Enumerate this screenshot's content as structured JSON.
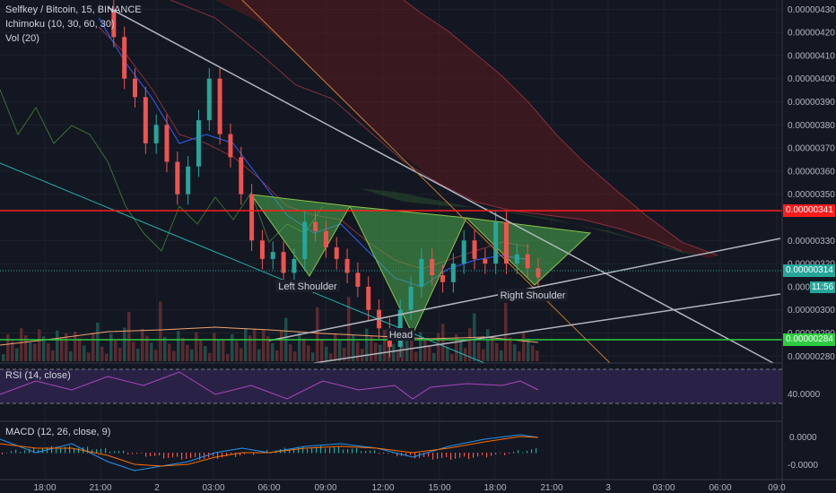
{
  "legend": {
    "symbol": "Selfkey / Bitcoin, 15, BINANCE",
    "ichimoku": "Ichimoku (10, 30, 60, 30)",
    "vol": "Vol (20)"
  },
  "chart_data": [
    {
      "type": "line",
      "name": "main-price-pane",
      "y_ticks": [
        "0.00000430",
        "0.00000420",
        "0.00000410",
        "0.00000400",
        "0.00000390",
        "0.00000380",
        "0.00000370",
        "0.00000360",
        "0.00000350",
        "0.00000330",
        "0.00000320",
        "0.00000300",
        "0.00000290",
        "0.00000280"
      ],
      "ylim": [
        2.77e-06,
        4.34e-06
      ],
      "x_ticks": [
        "18:00",
        "21:00",
        "2",
        "03:00",
        "06:00",
        "09:00",
        "12:00",
        "15:00",
        "18:00",
        "21:00",
        "3",
        "03:00",
        "06:00",
        "09:0"
      ],
      "horizontal_levels": [
        {
          "value": 3.41e-06,
          "label": "0.00000341",
          "color": "#ff1c1c"
        },
        {
          "value": 2.84e-06,
          "label": "0.00000284",
          "color": "#2ecc40"
        }
      ],
      "last_price": {
        "value": 3.14e-06,
        "label": "0.00000314",
        "countdown": "11:56",
        "color": "#26a69a"
      },
      "hidden_tick": "0.00000310",
      "annotations": [
        "Left Shoulder",
        "Head",
        "Right Shoulder"
      ],
      "pattern": "inverse head and shoulders",
      "candles_close": [
        4.3e-06,
        4.18e-06,
        4e-06,
        3.92e-06,
        3.72e-06,
        3.8e-06,
        3.64e-06,
        3.5e-06,
        3.62e-06,
        3.82e-06,
        4e-06,
        3.76e-06,
        3.66e-06,
        3.5e-06,
        3.3e-06,
        3.22e-06,
        3.25e-06,
        3.16e-06,
        3.22e-06,
        3.38e-06,
        3.34e-06,
        3.27e-06,
        3.22e-06,
        3.16e-06,
        3.1e-06,
        3e-06,
        2.92e-06,
        2.84e-06,
        3e-06,
        3.1e-06,
        3.22e-06,
        3.15e-06,
        3.12e-06,
        3.2e-06,
        3.3e-06,
        3.22e-06,
        3.2e-06,
        3.38e-06,
        3.2e-06,
        3.24e-06,
        3.18e-06,
        3.14e-06
      ]
    },
    {
      "type": "line",
      "name": "rsi-pane",
      "label": "RSI (14, close)",
      "y_ticks": [
        "40.0000"
      ],
      "band": [
        30,
        70
      ]
    },
    {
      "type": "bar",
      "name": "macd-pane",
      "label": "MACD (12, 26, close, 9)",
      "y_ticks": [
        "0.0000",
        "-0.0000"
      ]
    }
  ],
  "colors": {
    "background": "#131722",
    "up": "#26a69a",
    "down": "#ef5350",
    "trendline": "#b2b5be",
    "pattern_fill": "#4caf50",
    "resistance": "#ff1c1c",
    "support": "#2ecc40"
  }
}
